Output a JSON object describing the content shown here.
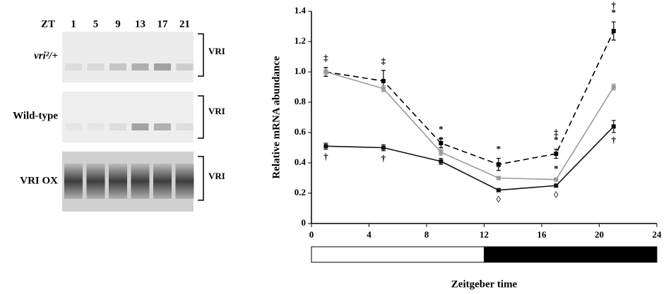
{
  "blot": {
    "lane_header": "ZT",
    "lanes": [
      "1",
      "5",
      "9",
      "13",
      "17",
      "21"
    ],
    "rows": [
      {
        "label": "vri²/+",
        "band": "VRI"
      },
      {
        "label": "Wild-type",
        "band": "VRI"
      },
      {
        "label": "VRI OX",
        "band": "VRI"
      }
    ]
  },
  "chart_data": {
    "type": "line",
    "x": [
      1,
      5,
      9,
      13,
      17,
      21
    ],
    "xlim": [
      0,
      24
    ],
    "xticks": [
      0,
      4,
      8,
      12,
      16,
      20,
      24
    ],
    "ylim": [
      0,
      1.4
    ],
    "yticks": [
      0,
      0.2,
      0.4,
      0.6,
      0.8,
      {
        "value": 1,
        "label": "1.0"
      },
      1.2,
      1.4
    ],
    "x_label": "Zeitgeber time",
    "y_label": "Relative mRNA abundance",
    "series": [
      {
        "color": "#000000",
        "dashed": true,
        "values": [
          1.0,
          0.94,
          0.53,
          0.39,
          0.46,
          1.27
        ],
        "errors": [
          0.03,
          0.07,
          0.03,
          0.04,
          0.03,
          0.06
        ]
      },
      {
        "color": "#9a9a9a",
        "dashed": false,
        "values": [
          1.0,
          0.89,
          0.47,
          0.3,
          0.29,
          0.9
        ],
        "errors": [
          0.02,
          0.02,
          0.02,
          0.01,
          0.01,
          0.02
        ]
      },
      {
        "color": "#111111",
        "dashed": false,
        "values": [
          0.51,
          0.5,
          0.41,
          0.22,
          0.25,
          0.64
        ],
        "errors": [
          0.02,
          0.02,
          0.02,
          0.01,
          0.01,
          0.04
        ]
      }
    ],
    "annotations": [
      {
        "text": "‡",
        "series": 0,
        "x": 1,
        "side": "above"
      },
      {
        "text": "‡",
        "series": 0,
        "x": 5,
        "side": "above"
      },
      {
        "text": "*",
        "series": 0,
        "x": 9,
        "side": "above"
      },
      {
        "text": "*",
        "series": 0,
        "x": 13,
        "side": "above"
      },
      {
        "text": "*",
        "series": 0,
        "x": 17,
        "side": "above"
      },
      {
        "text": "‡",
        "series": 0,
        "x": 17,
        "side": "above"
      },
      {
        "text": "*",
        "series": 0,
        "x": 21,
        "side": "above"
      },
      {
        "text": "†",
        "series": 0,
        "x": 21,
        "side": "above"
      },
      {
        "text": "*",
        "series": 1,
        "x": 9,
        "side": "above"
      },
      {
        "text": "*",
        "series": 1,
        "x": 13,
        "side": "above"
      },
      {
        "text": "*",
        "series": 1,
        "x": 17,
        "side": "above"
      },
      {
        "text": "†",
        "series": 2,
        "x": 1,
        "side": "below"
      },
      {
        "text": "†",
        "series": 2,
        "x": 5,
        "side": "below"
      },
      {
        "text": "◊",
        "series": 2,
        "x": 13,
        "side": "below"
      },
      {
        "text": "◊",
        "series": 2,
        "x": 17,
        "side": "below"
      },
      {
        "text": "†",
        "series": 2,
        "x": 21,
        "side": "below"
      }
    ],
    "light_dark": [
      {
        "start": 0,
        "end": 12,
        "color": "#ffffff"
      },
      {
        "start": 12,
        "end": 24,
        "color": "#000000"
      }
    ]
  }
}
